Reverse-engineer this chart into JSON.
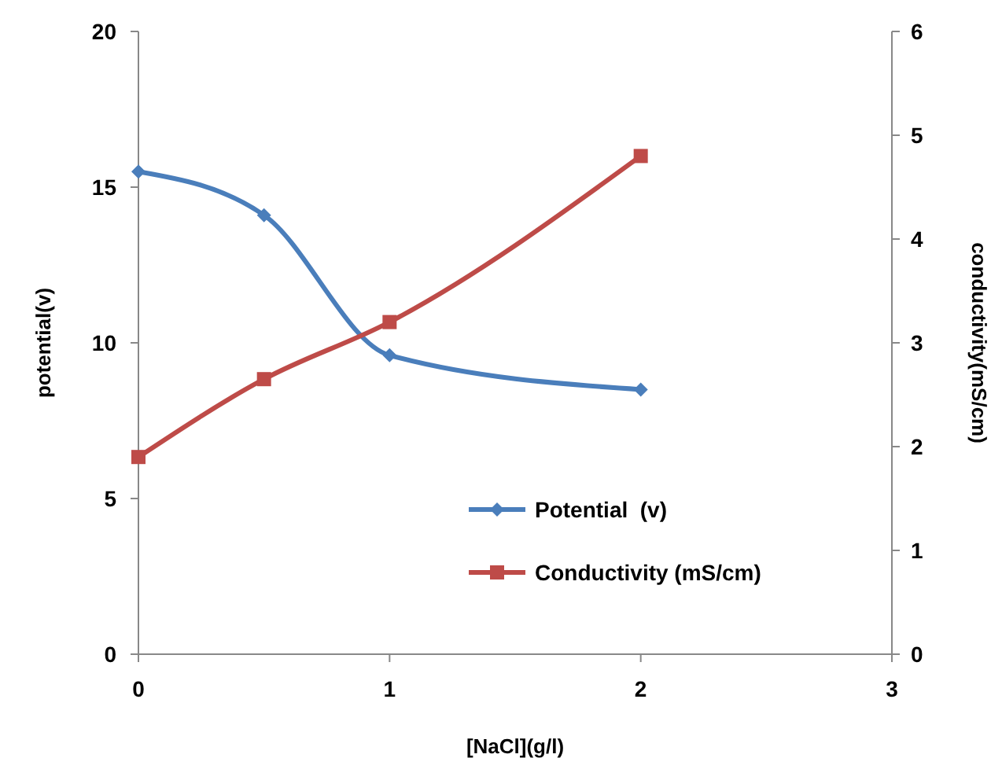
{
  "chart_data": {
    "type": "line",
    "xlabel": "[NaCl](g/l)",
    "ylabel": "potential(v)",
    "y2label": "conductivity(mS/cm)",
    "xlim": [
      0,
      3
    ],
    "xticks": [
      0,
      1,
      2,
      3
    ],
    "ylim": [
      0,
      20
    ],
    "yticks": [
      0,
      5,
      10,
      15,
      20
    ],
    "y2lim": [
      0,
      6
    ],
    "y2ticks": [
      0,
      1,
      2,
      3,
      4,
      5,
      6
    ],
    "grid": false,
    "legend": "bottom right",
    "series": [
      {
        "name": "Potential  (v)",
        "color": "#4a7ebb",
        "x": [
          0,
          0.5,
          1,
          2
        ],
        "values": [
          15.5,
          14.1,
          9.6,
          8.5
        ],
        "marker": "diamond"
      },
      {
        "name": "Conductivity (mS/cm)",
        "color": "#be4b48",
        "x": [
          0,
          0.5,
          1,
          2
        ],
        "values": [
          1.9,
          2.65,
          3.2,
          4.8
        ],
        "axis": "y2",
        "marker": "square"
      }
    ]
  }
}
